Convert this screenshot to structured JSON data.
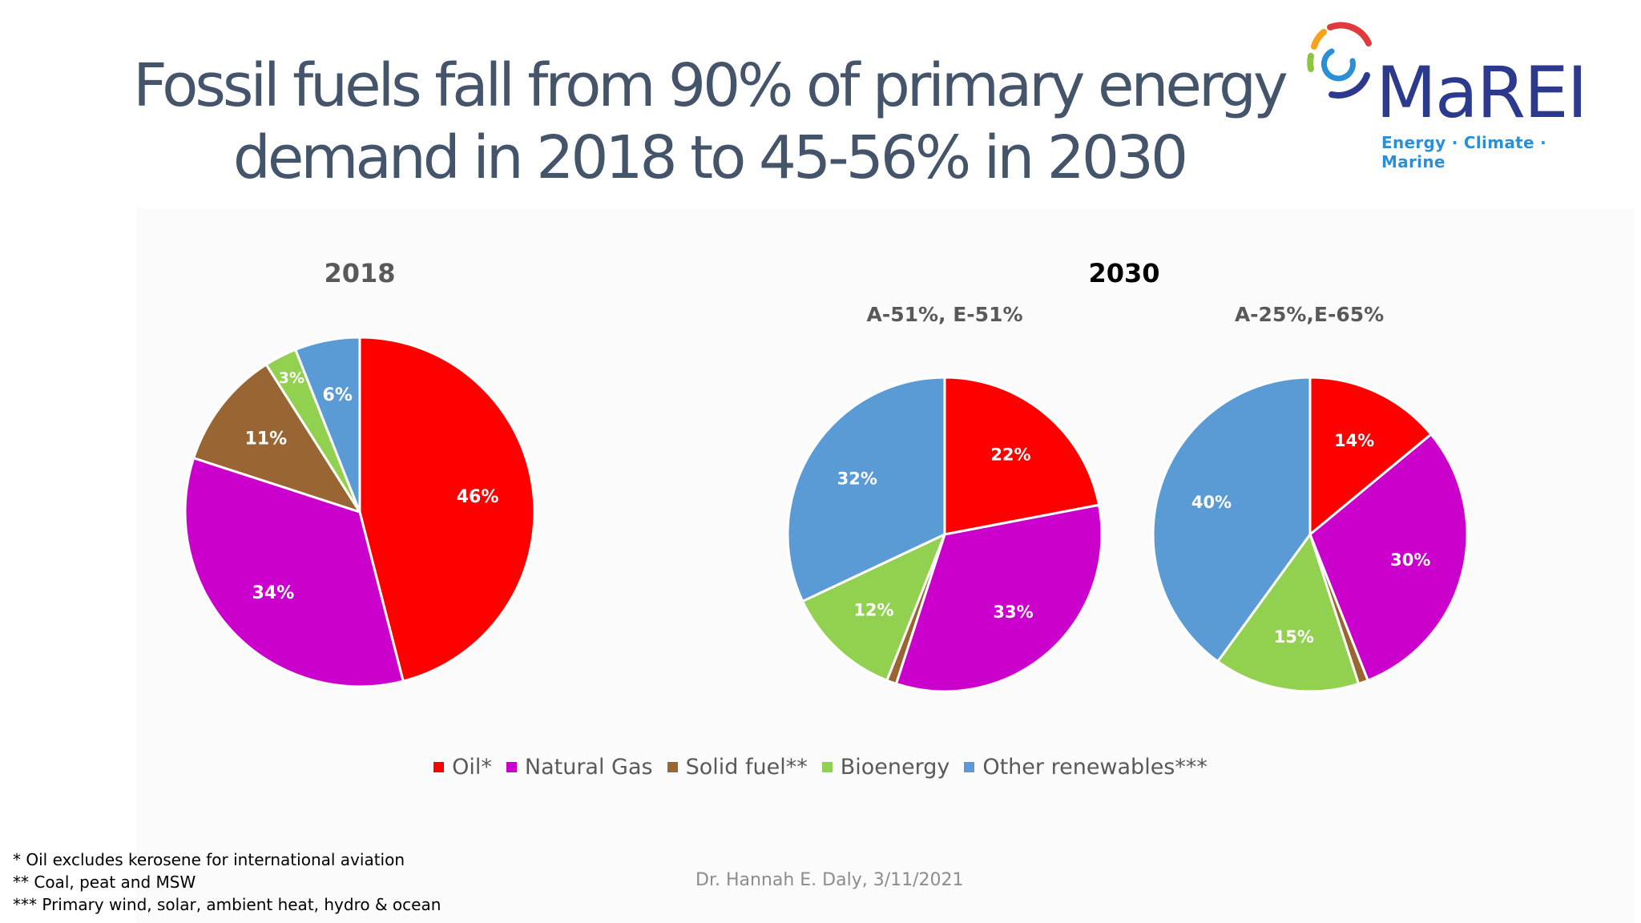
{
  "title_line1": "Fossil fuels fall from 90% of primary energy",
  "title_line2": "demand in 2018 to 45-56% in 2030",
  "logo": {
    "name": "MaREI",
    "tagline": "Energy · Climate · Marine",
    "colors": [
      "#e03a3e",
      "#f7a21b",
      "#8cc63f",
      "#2a8fd6",
      "#2b3a8c"
    ]
  },
  "section_2030_title": "2030",
  "chart_data": [
    {
      "type": "pie",
      "title": "2018",
      "labels": [
        "Oil*",
        "Natural Gas",
        "Solid fuel**",
        "Bioenergy",
        "Other renewables***"
      ],
      "values": [
        46,
        34,
        11,
        3,
        6
      ],
      "data_labels": [
        "46%",
        "34%",
        "11%",
        "3%",
        "6%"
      ],
      "colors": [
        "#ff0000",
        "#cc00cc",
        "#996633",
        "#92d050",
        "#5b9bd5"
      ]
    },
    {
      "type": "pie",
      "title": "A-51%, E-51%",
      "labels": [
        "Oil*",
        "Natural Gas",
        "Solid fuel**",
        "Bioenergy",
        "Other renewables***"
      ],
      "values": [
        22,
        33,
        1,
        12,
        32
      ],
      "data_labels": [
        "22%",
        "33%",
        "",
        "12%",
        "32%"
      ],
      "colors": [
        "#ff0000",
        "#cc00cc",
        "#996633",
        "#92d050",
        "#5b9bd5"
      ]
    },
    {
      "type": "pie",
      "title": "A-25%,E-65%",
      "labels": [
        "Oil*",
        "Natural Gas",
        "Solid fuel**",
        "Bioenergy",
        "Other renewables***"
      ],
      "values": [
        14,
        30,
        1,
        15,
        40
      ],
      "data_labels": [
        "14%",
        "30%",
        "",
        "15%",
        "40%"
      ],
      "colors": [
        "#ff0000",
        "#cc00cc",
        "#996633",
        "#92d050",
        "#5b9bd5"
      ]
    }
  ],
  "legend": [
    {
      "label": "Oil*",
      "color": "#ff0000"
    },
    {
      "label": "Natural Gas",
      "color": "#cc00cc"
    },
    {
      "label": "Solid fuel**",
      "color": "#996633"
    },
    {
      "label": "Bioenergy",
      "color": "#92d050"
    },
    {
      "label": "Other renewables***",
      "color": "#5b9bd5"
    }
  ],
  "footnotes": [
    "* Oil excludes kerosene for international aviation",
    "** Coal, peat and MSW",
    "*** Primary wind, solar, ambient heat, hydro & ocean"
  ],
  "author": "Dr. Hannah E. Daly, 3/11/2021"
}
